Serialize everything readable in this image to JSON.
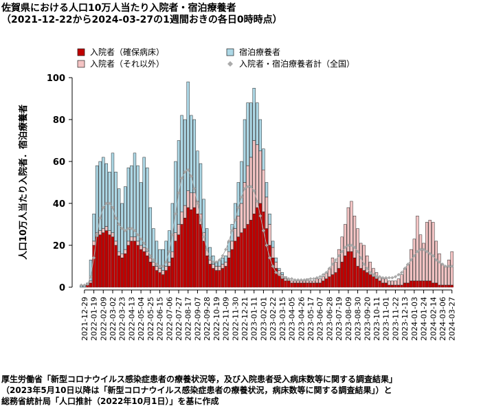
{
  "chart_data": {
    "type": "bar",
    "stacked": true,
    "title": "佐賀県における人口10万人当たり入院者・宿泊療養者",
    "subtitle": "（2021-12-22から2024-03-27の1週間おきの各日0時時点）",
    "y_label": "人口10万人当たり入院者．宿泊療養者",
    "source": [
      "厚生労働省「新型コロナウイルス感染症患者の療養状況等，及び入院患者受入病床数等に関する調査結果」",
      "（2023年5月10日以降は「新型コロナウイルス感染症患者の療養状況，病床数等に関する調査結果」）と",
      "総務省統計局「人口推計（2022年10月1日）」を基に作成"
    ],
    "ylim": [
      0,
      100
    ],
    "yticks": [
      0,
      20,
      40,
      60,
      80,
      100
    ],
    "categories": [
      null,
      "2021-12-29",
      null,
      null,
      "2022-01-19",
      null,
      null,
      "2022-02-09",
      null,
      null,
      "2022-03-02",
      null,
      null,
      "2022-03-23",
      null,
      null,
      "2022-04-13",
      null,
      null,
      "2022-05-04",
      null,
      null,
      "2022-05-25",
      null,
      null,
      "2022-06-15",
      null,
      null,
      "2022-07-06",
      null,
      null,
      "2022-07-27",
      null,
      null,
      "2022-08-17",
      null,
      null,
      "2022-09-07",
      null,
      null,
      "2022-09-28",
      null,
      null,
      "2022-10-19",
      null,
      null,
      "2022-11-09",
      null,
      null,
      "2022-11-30",
      null,
      null,
      "2022-12-21",
      null,
      null,
      "2023-01-11",
      null,
      null,
      "2023-02-01",
      null,
      null,
      "2023-02-22",
      null,
      null,
      "2023-03-15",
      null,
      null,
      "2023-04-05",
      null,
      null,
      "2023-04-26",
      null,
      null,
      "2023-05-17",
      null,
      null,
      "2023-06-07",
      null,
      null,
      "2023-06-28",
      null,
      null,
      "2023-07-19",
      null,
      null,
      "2023-08-09",
      null,
      null,
      "2023-08-30",
      null,
      null,
      "2023-09-20",
      null,
      null,
      "2023-10-11",
      null,
      null,
      "2023-11-01",
      null,
      null,
      "2023-11-22",
      null,
      null,
      "2023-12-13",
      null,
      null,
      "2024-01-03",
      null,
      null,
      "2024-01-24",
      null,
      null,
      "2024-02-14",
      null,
      null,
      "2024-03-06",
      null,
      null,
      "2024-03-27"
    ],
    "series": [
      {
        "name": "入院者（確保病床）",
        "color": "#c00000",
        "values": [
          0,
          0,
          1,
          2,
          20,
          24,
          25,
          26,
          27,
          25,
          24,
          20,
          15,
          14,
          16,
          20,
          22,
          22,
          20,
          18,
          17,
          15,
          12,
          10,
          8,
          7,
          6,
          8,
          10,
          14,
          22,
          25,
          30,
          33,
          38,
          37,
          38,
          35,
          30,
          22,
          15,
          11,
          9,
          8,
          8,
          9,
          10,
          14,
          18,
          22,
          24,
          26,
          28,
          30,
          32,
          35,
          38,
          40,
          36,
          28,
          20,
          14,
          9,
          6,
          4,
          3,
          3,
          2,
          2,
          2,
          2,
          2,
          2,
          2,
          2,
          2,
          2,
          3,
          4,
          5,
          6,
          7,
          9,
          12,
          15,
          17,
          17,
          14,
          10,
          9,
          8,
          7,
          6,
          5,
          4,
          3,
          2,
          2,
          1,
          1,
          1,
          1,
          1,
          2,
          2,
          3,
          3,
          3,
          3,
          3,
          3,
          3,
          2,
          2,
          1,
          1,
          1,
          1,
          1
        ]
      },
      {
        "name": "入院者（それ以外）",
        "color": "#f4c4c4",
        "values": [
          0,
          0,
          0,
          1,
          2,
          2,
          2,
          2,
          2,
          2,
          2,
          2,
          2,
          2,
          2,
          2,
          2,
          2,
          2,
          2,
          2,
          2,
          2,
          2,
          2,
          2,
          2,
          2,
          2,
          3,
          4,
          5,
          6,
          6,
          8,
          8,
          7,
          6,
          5,
          4,
          3,
          2,
          2,
          2,
          2,
          2,
          2,
          3,
          4,
          6,
          10,
          14,
          22,
          28,
          30,
          35,
          30,
          25,
          20,
          15,
          10,
          5,
          3,
          2,
          2,
          1,
          1,
          1,
          1,
          1,
          1,
          1,
          2,
          1,
          1,
          2,
          2,
          2,
          3,
          4,
          8,
          5,
          9,
          12,
          15,
          21,
          24,
          20,
          18,
          12,
          12,
          8,
          6,
          4,
          3,
          2,
          2,
          2,
          2,
          2,
          2,
          3,
          5,
          7,
          9,
          15,
          20,
          31,
          22,
          18,
          28,
          29,
          29,
          20,
          15,
          10,
          9,
          12,
          16
        ]
      },
      {
        "name": "宿泊療養者",
        "color": "#add8e6",
        "values": [
          1,
          1,
          1,
          10,
          13,
          32,
          33,
          34,
          30,
          28,
          38,
          33,
          30,
          24,
          30,
          35,
          34,
          40,
          36,
          30,
          43,
          40,
          24,
          16,
          12,
          9,
          10,
          12,
          15,
          23,
          34,
          40,
          46,
          41,
          52,
          37,
          35,
          24,
          24,
          16,
          10,
          6,
          4,
          2,
          3,
          3,
          3,
          5,
          8,
          12,
          16,
          20,
          30,
          30,
          26,
          25,
          20,
          15,
          10,
          7,
          5,
          3,
          2,
          1,
          1,
          1,
          0,
          0,
          0,
          0,
          0,
          0,
          0,
          0,
          0,
          0,
          0,
          0,
          0,
          0,
          0,
          0,
          0,
          0,
          0,
          0,
          0,
          0,
          0,
          0,
          0,
          0,
          0,
          0,
          0,
          0,
          0,
          0,
          0,
          0,
          0,
          0,
          0,
          0,
          0,
          0,
          0,
          0,
          0,
          0,
          0,
          0,
          0,
          0,
          0,
          0,
          0,
          0,
          0
        ]
      },
      {
        "name": "入院者・宿泊療養者計（全国）",
        "type": "line",
        "color": "#aaaaaa",
        "values": [
          1,
          1,
          1.5,
          5,
          14,
          25,
          33,
          38,
          40,
          40,
          38,
          33,
          30,
          28,
          27,
          28,
          28,
          27,
          25,
          23,
          21,
          18,
          15,
          13,
          11,
          10,
          10,
          12,
          17,
          25,
          35,
          45,
          52,
          55,
          56,
          53,
          47,
          40,
          32,
          24,
          18,
          14,
          12,
          12,
          13,
          15,
          18,
          22,
          27,
          32,
          38,
          43,
          47,
          48,
          48,
          46,
          41,
          34,
          27,
          20,
          14,
          10,
          7,
          6,
          5,
          4.5,
          4,
          4,
          3.5,
          3.5,
          3.5,
          3.5,
          3.5,
          4,
          4,
          4.5,
          5,
          6,
          7,
          9,
          11,
          13,
          15,
          17,
          19,
          20,
          20,
          19,
          17,
          14,
          11,
          9,
          7,
          6,
          5,
          5,
          4.5,
          4.5,
          4.5,
          4.5,
          5,
          6,
          7,
          9,
          11,
          13,
          15,
          17,
          18,
          18,
          17,
          16,
          15,
          13,
          12,
          11,
          10,
          10,
          10
        ]
      }
    ]
  }
}
